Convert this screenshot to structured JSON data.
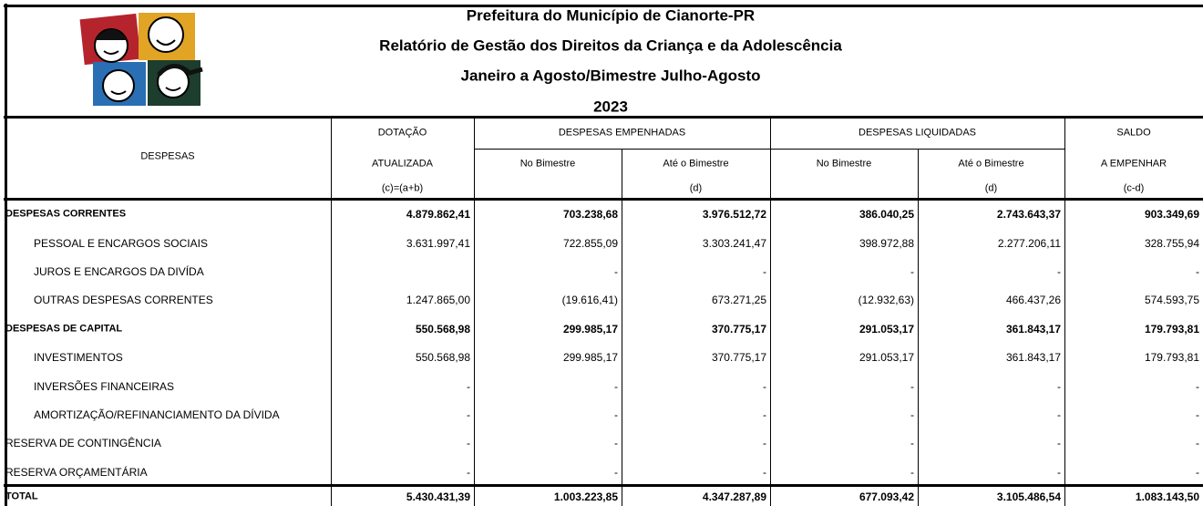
{
  "header": {
    "lines": [
      "Prefeitura do Município de Cianorte-PR",
      "Relatório de Gestão dos Direitos da Criança e da Adolescência",
      "Janeiro a Agosto/Bimestre Julho-Agosto",
      "2023"
    ]
  },
  "table": {
    "first_column": "DESPESAS",
    "groups": [
      {
        "lines": [
          "DOTAÇÃO",
          "ATUALIZADA",
          "(c)=(a+b)"
        ]
      },
      {
        "label": "DESPESAS EMPENHADAS",
        "sub": [
          {
            "lines": [
              "No Bimestre"
            ]
          },
          {
            "lines": [
              "Até o Bimestre",
              "(d)"
            ]
          }
        ]
      },
      {
        "label": "DESPESAS LIQUIDADAS",
        "sub": [
          {
            "lines": [
              "No Bimestre"
            ]
          },
          {
            "lines": [
              "Até o Bimestre",
              "(d)"
            ]
          }
        ]
      },
      {
        "lines": [
          "SALDO",
          "A EMPENHAR",
          "(c-d)"
        ]
      }
    ],
    "rows": [
      {
        "label": "DESPESAS CORRENTES",
        "level": 0,
        "bold": true,
        "cells": [
          "4.879.862,41",
          "703.238,68",
          "3.976.512,72",
          "386.040,25",
          "2.743.643,37",
          "903.349,69"
        ]
      },
      {
        "label": "PESSOAL E ENCARGOS SOCIAIS",
        "level": 1,
        "bold": false,
        "cells": [
          "3.631.997,41",
          "722.855,09",
          "3.303.241,47",
          "398.972,88",
          "2.277.206,11",
          "328.755,94"
        ]
      },
      {
        "label": "JUROS E ENCARGOS DA DIVÍDA",
        "level": 1,
        "bold": false,
        "cells": [
          null,
          "-",
          "-",
          "-",
          "-",
          "-"
        ]
      },
      {
        "label": "OUTRAS DESPESAS CORRENTES",
        "level": 1,
        "bold": false,
        "cells": [
          "1.247.865,00",
          "(19.616,41)",
          "673.271,25",
          "(12.932,63)",
          "466.437,26",
          "574.593,75"
        ]
      },
      {
        "label": "DESPESAS DE CAPITAL",
        "level": 0,
        "bold": true,
        "cells": [
          "550.568,98",
          "299.985,17",
          "370.775,17",
          "291.053,17",
          "361.843,17",
          "179.793,81"
        ]
      },
      {
        "label": "INVESTIMENTOS",
        "level": 1,
        "bold": false,
        "cells": [
          "550.568,98",
          "299.985,17",
          "370.775,17",
          "291.053,17",
          "361.843,17",
          "179.793,81"
        ]
      },
      {
        "label": "INVERSÕES FINANCEIRAS",
        "level": 1,
        "bold": false,
        "cells": [
          "-",
          "-",
          "-",
          "-",
          "-",
          "-"
        ]
      },
      {
        "label": "AMORTIZAÇÃO/REFINANCIAMENTO DA DÍVIDA",
        "level": 1,
        "bold": false,
        "cells": [
          "-",
          "-",
          "-",
          "-",
          "-",
          "-"
        ]
      },
      {
        "label": "RESERVA DE CONTINGÊNCIA",
        "level": 0,
        "bold": false,
        "cells": [
          "-",
          "-",
          "-",
          "-",
          "-",
          "-"
        ]
      },
      {
        "label": "RESERVA ORÇAMENTÁRIA",
        "level": 0,
        "bold": false,
        "cells": [
          "-",
          "-",
          "-",
          "-",
          "-",
          "-"
        ]
      }
    ],
    "total": {
      "label": "TOTAL",
      "cells": [
        "5.430.431,39",
        "1.003.223,85",
        "4.347.287,89",
        "677.093,42",
        "3.105.486,54",
        "1.083.143,50"
      ]
    }
  }
}
